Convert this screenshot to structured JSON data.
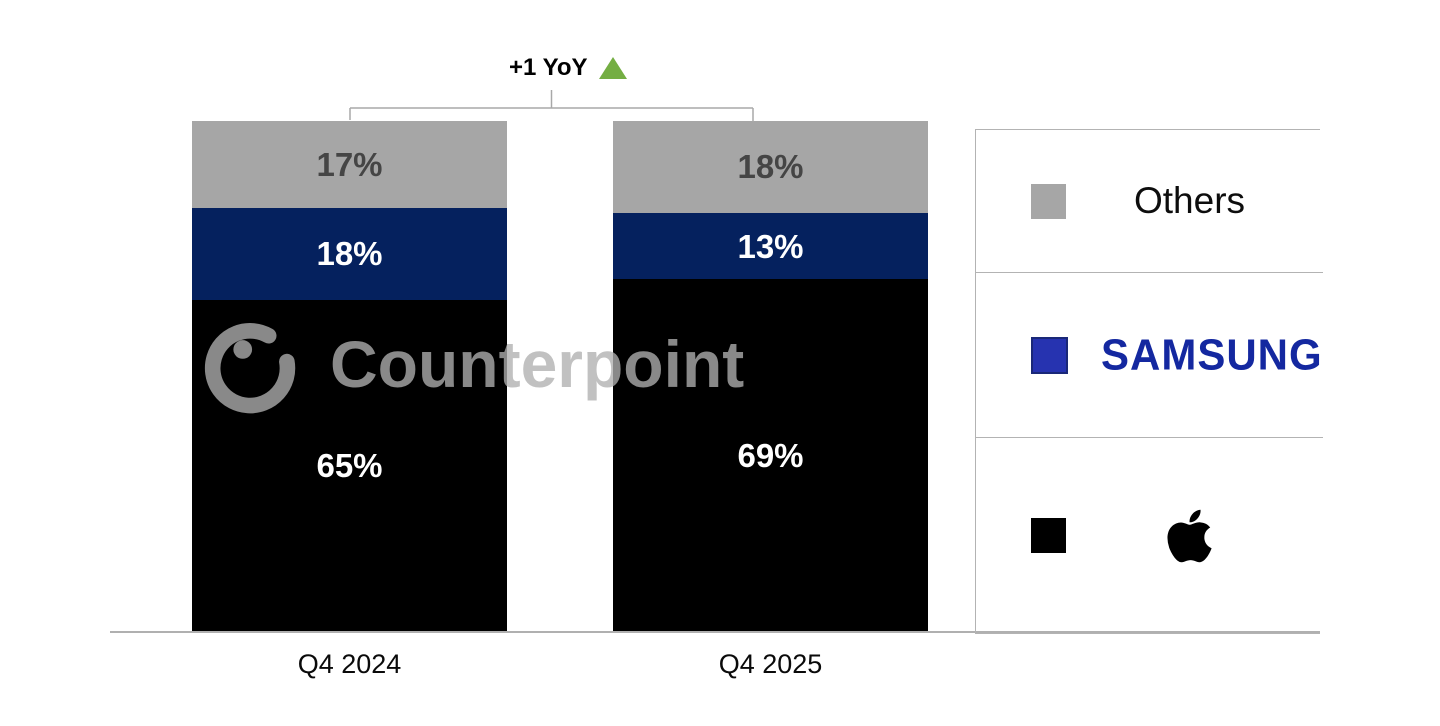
{
  "watermark": {
    "text": "Counterpoint"
  },
  "annotation": {
    "text": "+1 YoY",
    "icon": "up-triangle",
    "triangle_color": "#74ae43",
    "bracket_color": "#a8a8a8"
  },
  "chart_data": {
    "type": "bar",
    "stacked": true,
    "categories": [
      "Q4 2024",
      "Q4 2025"
    ],
    "series": [
      {
        "name": "Apple",
        "values": [
          65,
          69
        ],
        "color": "#000000",
        "label_color": "#ffffff"
      },
      {
        "name": "Samsung",
        "values": [
          18,
          13
        ],
        "color": "#05215e",
        "label_color": "#ffffff"
      },
      {
        "name": "Others",
        "values": [
          17,
          18
        ],
        "color": "#a6a6a6",
        "label_color": "#454545"
      }
    ],
    "stack_order_top_to_bottom": [
      "Others",
      "Samsung",
      "Apple"
    ],
    "value_suffix": "%",
    "ylim": [
      0,
      100
    ],
    "grid": false,
    "legend_position": "right",
    "axis_line_color": "#b0b0b0",
    "yoy_annotation": "+1 YoY"
  },
  "legend": {
    "items": [
      {
        "name": "Others",
        "swatch_color": "#a6a6a6",
        "label": "Others",
        "label_type": "text"
      },
      {
        "name": "Samsung",
        "swatch_color": "#2633b0",
        "label": "SAMSUNG",
        "label_type": "wordmark",
        "wordmark_color": "#1428a0"
      },
      {
        "name": "Apple",
        "swatch_color": "#000000",
        "label": "apple-logo",
        "label_type": "icon",
        "icon_color": "#000000"
      }
    ]
  }
}
